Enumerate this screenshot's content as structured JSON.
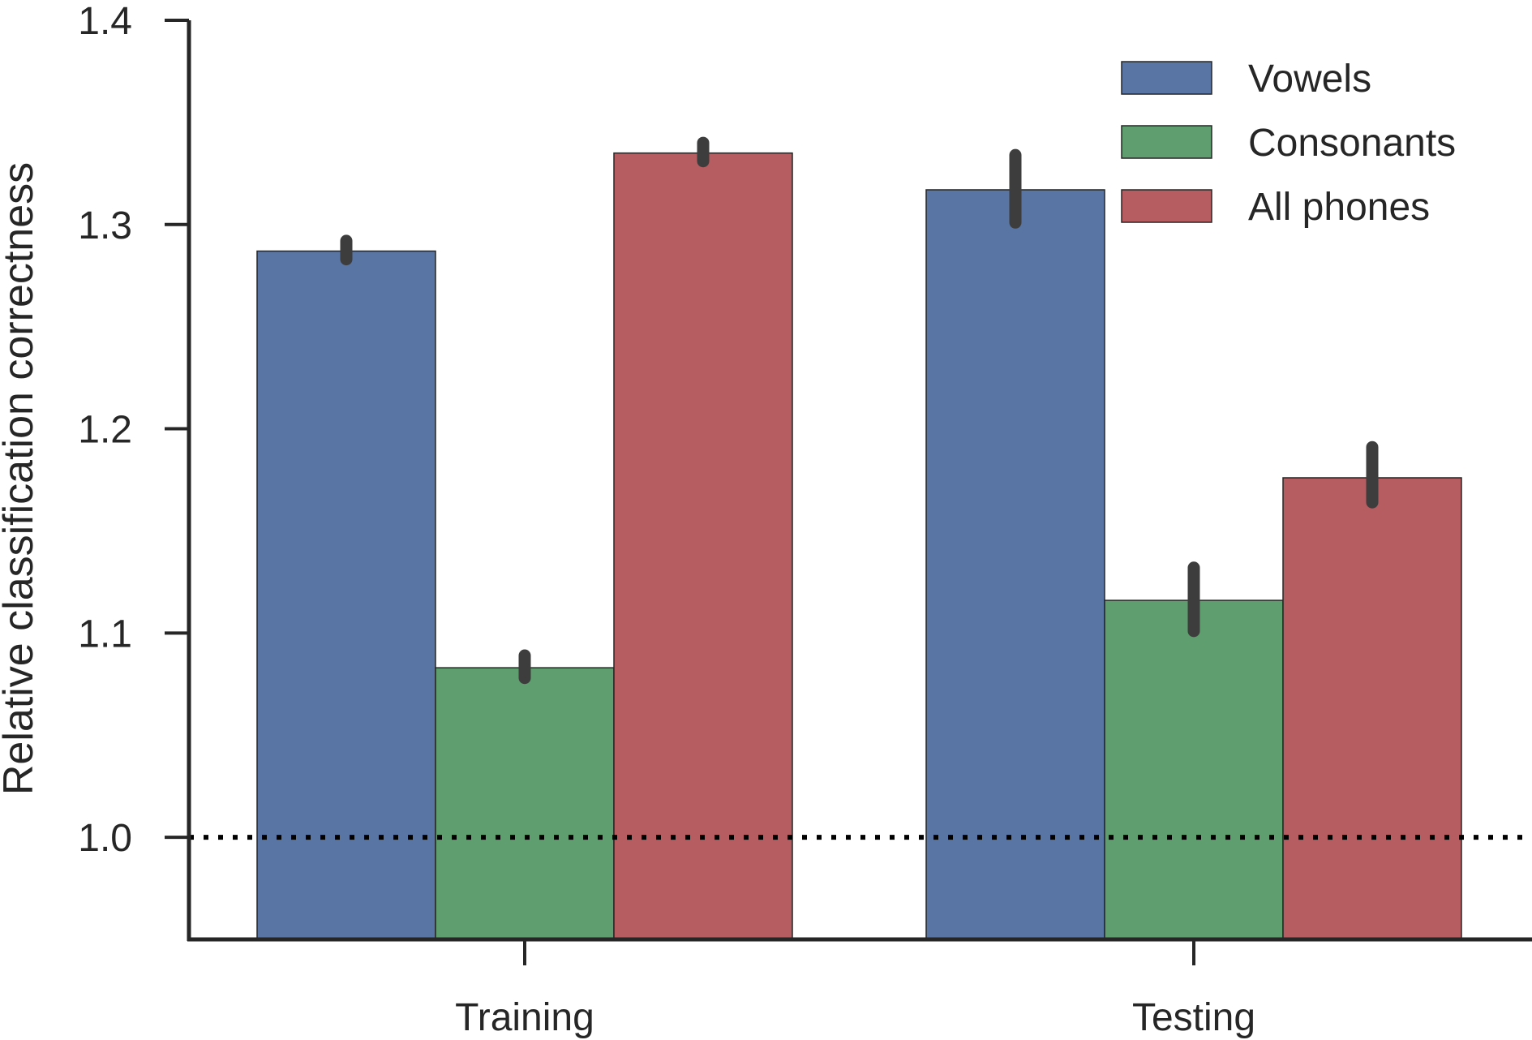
{
  "chart_data": {
    "type": "bar",
    "title": "",
    "xlabel": "",
    "ylabel": "Relative classification correctness",
    "categories": [
      "Training",
      "Testing"
    ],
    "series": [
      {
        "name": "Vowels",
        "color": "#5975a4",
        "values": [
          1.287,
          1.317
        ],
        "err_low": [
          1.283,
          1.301
        ],
        "err_high": [
          1.292,
          1.334
        ]
      },
      {
        "name": "Consonants",
        "color": "#5f9e6e",
        "values": [
          1.083,
          1.116
        ],
        "err_low": [
          1.078,
          1.101
        ],
        "err_high": [
          1.089,
          1.132
        ]
      },
      {
        "name": "All phones",
        "color": "#b55d60",
        "values": [
          1.335,
          1.176
        ],
        "err_low": [
          1.331,
          1.164
        ],
        "err_high": [
          1.34,
          1.191
        ]
      }
    ],
    "yticks": [
      "1.0",
      "1.1",
      "1.2",
      "1.3",
      "1.4"
    ],
    "ylim": [
      0.95,
      1.4
    ],
    "reference_line": 1.0,
    "legend_position": "top-right",
    "grid": false
  }
}
